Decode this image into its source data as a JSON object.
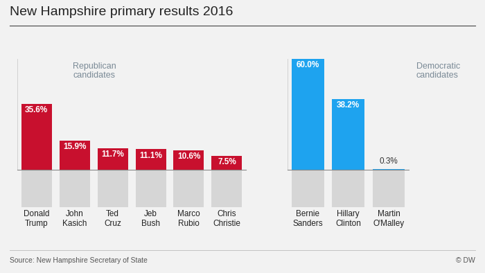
{
  "title": "New Hampshire primary results 2016",
  "source": "Source: New Hampshire Secretary of State",
  "credit": "© DW",
  "chart_data": [
    {
      "type": "bar",
      "title": "Republican candidates",
      "categories": [
        "Donald Trump",
        "John Kasich",
        "Ted Cruz",
        "Jeb Bush",
        "Marco Rubio",
        "Chris Christie"
      ],
      "values": [
        35.6,
        15.9,
        11.7,
        11.1,
        10.6,
        7.5
      ],
      "value_labels": [
        "35.6%",
        "15.9%",
        "11.7%",
        "11.1%",
        "10.6%",
        "7.5%"
      ],
      "color": "#c8102e",
      "ylim": [
        0,
        60
      ],
      "yticks": [],
      "data_labels": true,
      "tick_labels": "x"
    },
    {
      "type": "bar",
      "title": "Democratic candidates",
      "categories": [
        "Bernie Sanders",
        "Hillary Clinton",
        "Martin O'Malley"
      ],
      "values": [
        60.0,
        38.2,
        0.3
      ],
      "value_labels": [
        "60.0%",
        "38.2%",
        "0.3%"
      ],
      "color": "#1ea3ef",
      "ylim": [
        0,
        60
      ],
      "yticks": [],
      "data_labels": true,
      "tick_labels": "x"
    }
  ]
}
